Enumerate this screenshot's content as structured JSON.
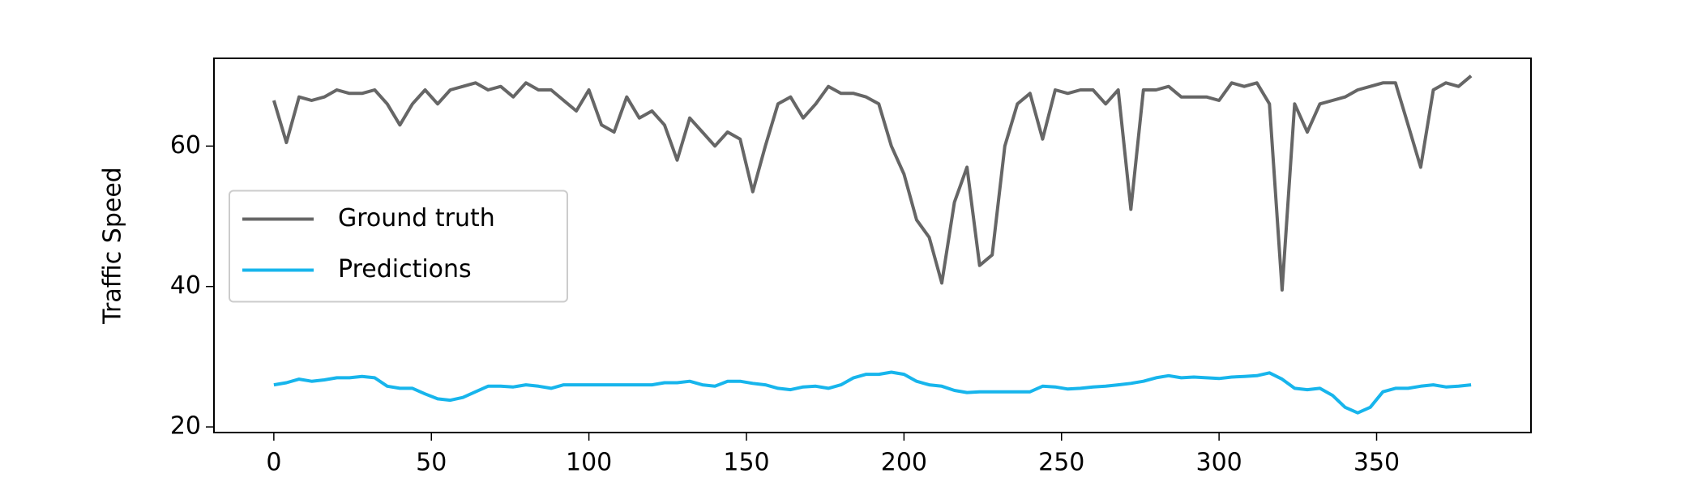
{
  "chart_data": {
    "type": "line",
    "y_label": "Traffic Speed",
    "x": [
      0,
      4,
      8,
      12,
      16,
      20,
      24,
      28,
      32,
      36,
      40,
      44,
      48,
      52,
      56,
      60,
      64,
      68,
      72,
      76,
      80,
      84,
      88,
      92,
      96,
      100,
      104,
      108,
      112,
      116,
      120,
      124,
      128,
      132,
      136,
      140,
      144,
      148,
      152,
      156,
      160,
      164,
      168,
      172,
      176,
      180,
      184,
      188,
      192,
      196,
      200,
      204,
      208,
      212,
      216,
      220,
      224,
      228,
      232,
      236,
      240,
      244,
      248,
      252,
      256,
      260,
      264,
      268,
      272,
      276,
      280,
      284,
      288,
      292,
      296,
      300,
      304,
      308,
      312,
      316,
      320,
      324,
      328,
      332,
      336,
      340,
      344,
      348,
      352,
      356,
      360,
      364,
      368,
      372,
      376,
      380
    ],
    "series": [
      {
        "name": "Ground truth",
        "color": "#666666",
        "values": [
          66.5,
          60.5,
          67,
          66.5,
          67,
          68,
          67.5,
          67.5,
          68,
          66,
          63,
          66,
          68,
          66,
          68,
          68.5,
          69,
          68,
          68.5,
          67,
          69,
          68,
          68,
          66.5,
          65,
          68,
          63,
          62,
          67,
          64,
          65,
          63,
          58,
          64,
          62,
          60,
          62,
          61,
          53.5,
          60,
          66,
          67,
          64,
          66,
          68.5,
          67.5,
          67.5,
          67,
          66,
          60,
          56,
          49.5,
          47,
          40.5,
          52,
          57,
          43,
          44.5,
          60,
          66,
          67.5,
          61,
          68,
          67.5,
          68,
          68,
          66,
          68,
          51,
          68,
          68,
          68.5,
          67,
          67,
          67,
          66.5,
          69,
          68.5,
          69,
          66,
          39.5,
          66,
          62,
          66,
          66.5,
          67,
          68,
          68.5,
          69,
          69,
          63,
          57,
          68,
          69,
          68.5,
          70
        ]
      },
      {
        "name": "Predictions",
        "color": "#17b5ec",
        "values": [
          26,
          26.3,
          26.8,
          26.5,
          26.7,
          27,
          27,
          27.2,
          27,
          25.8,
          25.5,
          25.5,
          24.7,
          24,
          23.8,
          24.2,
          25,
          25.8,
          25.8,
          25.7,
          26,
          25.8,
          25.5,
          26,
          26,
          26,
          26,
          26,
          26,
          26,
          26,
          26.3,
          26.3,
          26.5,
          26,
          25.8,
          26.5,
          26.5,
          26.2,
          26,
          25.5,
          25.3,
          25.7,
          25.8,
          25.5,
          26,
          27,
          27.5,
          27.5,
          27.8,
          27.5,
          26.5,
          26,
          25.8,
          25.2,
          24.9,
          25,
          25,
          25,
          25,
          25,
          25.8,
          25.7,
          25.4,
          25.5,
          25.7,
          25.8,
          26,
          26.2,
          26.5,
          27,
          27.3,
          27,
          27.1,
          27,
          26.9,
          27.1,
          27.2,
          27.3,
          27.7,
          26.8,
          25.5,
          25.3,
          25.5,
          24.5,
          22.8,
          22,
          22.8,
          25,
          25.5,
          25.5,
          25.8,
          26,
          25.7,
          25.8,
          26
        ]
      }
    ],
    "xlim": [
      -19,
      399
    ],
    "ylim": [
      19.2,
      72.5
    ],
    "xticks": [
      0,
      50,
      100,
      150,
      200,
      250,
      300,
      350
    ],
    "yticks": [
      20,
      40,
      60
    ],
    "legend": "center left"
  }
}
